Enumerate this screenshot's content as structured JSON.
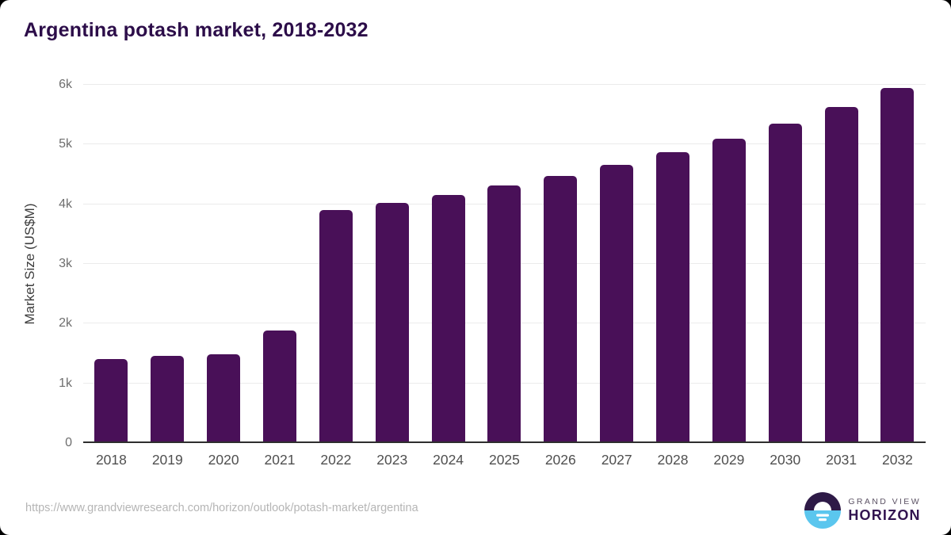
{
  "title": "Argentina potash market, 2018-2032",
  "colors": {
    "bar": "#491058",
    "title_text": "#2c0d49",
    "gridline": "#ebebeb",
    "axis_line": "#2e2e2e",
    "tick_text": "#6e6e6e",
    "url_text": "#b5b5b5",
    "logo_dark_purple": "#2e1a47",
    "logo_sky_blue": "#5bc6ee"
  },
  "chart_data": {
    "type": "bar",
    "title": "Argentina potash market, 2018-2032",
    "categories": [
      "2018",
      "2019",
      "2020",
      "2021",
      "2022",
      "2023",
      "2024",
      "2025",
      "2026",
      "2027",
      "2028",
      "2029",
      "2030",
      "2031",
      "2032"
    ],
    "values": [
      1410,
      1460,
      1490,
      1890,
      3900,
      4020,
      4150,
      4310,
      4470,
      4660,
      4870,
      5100,
      5350,
      5630,
      5950
    ],
    "xlabel": "",
    "ylabel": "Market Size (US$M)",
    "ylim": [
      0,
      6000
    ],
    "yticks": [
      {
        "value": 0,
        "label": "0"
      },
      {
        "value": 1000,
        "label": "1k"
      },
      {
        "value": 2000,
        "label": "2k"
      },
      {
        "value": 3000,
        "label": "3k"
      },
      {
        "value": 4000,
        "label": "4k"
      },
      {
        "value": 5000,
        "label": "5k"
      },
      {
        "value": 6000,
        "label": "6k"
      }
    ],
    "grid": "horizontal",
    "legend": "none",
    "bar_color": "#491058"
  },
  "footer": {
    "source_url": "https://www.grandviewresearch.com/horizon/outlook/potash-market/argentina",
    "logo": {
      "line1": "GRAND VIEW",
      "line2": "HORIZON"
    }
  }
}
